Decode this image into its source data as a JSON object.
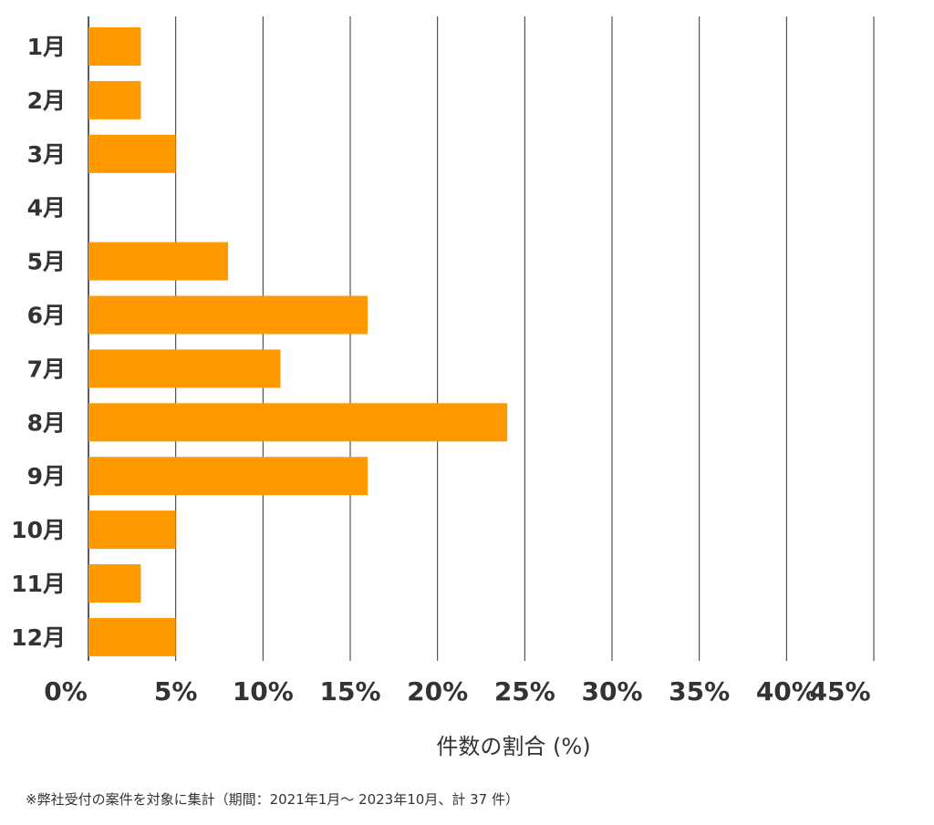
{
  "chart_data": {
    "type": "bar",
    "orientation": "horizontal",
    "categories": [
      "1月",
      "2月",
      "3月",
      "4月",
      "5月",
      "6月",
      "7月",
      "8月",
      "9月",
      "10月",
      "11月",
      "12月"
    ],
    "values": [
      3,
      3,
      5,
      0,
      8,
      16,
      11,
      24,
      16,
      5,
      3,
      5
    ],
    "xlabel": "件数の割合 (%)",
    "xlim": [
      0,
      45
    ],
    "xticks": [
      0,
      5,
      10,
      15,
      20,
      25,
      30,
      35,
      40,
      45
    ],
    "xtick_labels": [
      "0%",
      "5%",
      "10%",
      "15%",
      "20%",
      "25%",
      "30%",
      "35%",
      "40%",
      "45%"
    ],
    "grid": "vertical",
    "bar_color": "#ff9900",
    "grid_color": "#333333"
  },
  "footnote": "※弊社受付の案件を対象に集計（期間：2021年1月～ 2023年10月、計 37 件）"
}
